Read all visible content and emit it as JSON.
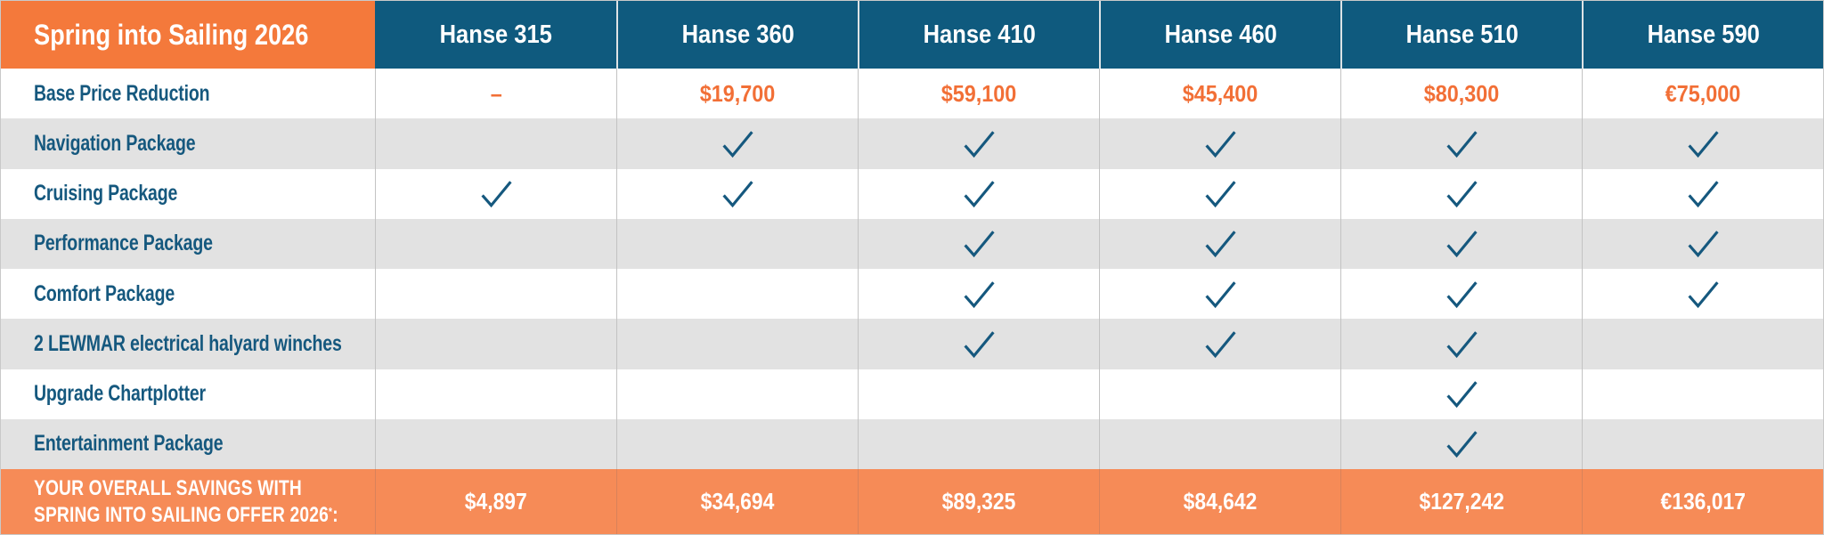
{
  "table": {
    "title": "Spring into Sailing 2026",
    "models": [
      "Hanse 315",
      "Hanse 360",
      "Hanse 410",
      "Hanse 460",
      "Hanse 510",
      "Hanse 590"
    ],
    "rows": [
      {
        "label": "Base Price Reduction",
        "type": "price",
        "values": [
          "–",
          "$19,700",
          "$59,100",
          "$45,400",
          "$80,300",
          "€75,000"
        ]
      },
      {
        "label": "Navigation Package",
        "type": "check",
        "values": [
          false,
          true,
          true,
          true,
          true,
          true
        ]
      },
      {
        "label": "Cruising Package",
        "type": "check",
        "values": [
          true,
          true,
          true,
          true,
          true,
          true
        ]
      },
      {
        "label": "Performance Package",
        "type": "check",
        "values": [
          false,
          false,
          true,
          true,
          true,
          true
        ]
      },
      {
        "label": "Comfort Package",
        "type": "check",
        "values": [
          false,
          false,
          true,
          true,
          true,
          true
        ]
      },
      {
        "label": "2 LEWMAR electrical halyard winches",
        "type": "check",
        "values": [
          false,
          false,
          true,
          true,
          true,
          false
        ]
      },
      {
        "label": "Upgrade Chartplotter",
        "type": "check",
        "values": [
          false,
          false,
          false,
          false,
          true,
          false
        ]
      },
      {
        "label": "Entertainment Package",
        "type": "check",
        "values": [
          false,
          false,
          false,
          false,
          true,
          false
        ]
      }
    ],
    "footer": {
      "label_line1": "YOUR OVERALL SAVINGS WITH",
      "label_line2": "SPRING INTO SAILING OFFER 2026",
      "label_sup": "*",
      "label_colon": ":",
      "values": [
        "$4,897",
        "$34,694",
        "$89,325",
        "$84,642",
        "$127,242",
        "€136,017"
      ]
    },
    "colors": {
      "header_orange": "#F4793B",
      "header_blue": "#0F5A7E",
      "accent_blue": "#15587E",
      "price_orange": "#F26F36",
      "row_gray": "#E2E2E2",
      "footer_orange": "#F68B57",
      "white": "#FFFFFF"
    }
  },
  "chart_data": {
    "type": "table",
    "title": "Spring into Sailing 2026",
    "columns": [
      "Spring into Sailing 2026",
      "Hanse 315",
      "Hanse 360",
      "Hanse 410",
      "Hanse 460",
      "Hanse 510",
      "Hanse 590"
    ],
    "rows": [
      [
        "Base Price Reduction",
        "–",
        "$19,700",
        "$59,100",
        "$45,400",
        "$80,300",
        "€75,000"
      ],
      [
        "Navigation Package",
        "",
        "✓",
        "✓",
        "✓",
        "✓",
        "✓"
      ],
      [
        "Cruising Package",
        "✓",
        "✓",
        "✓",
        "✓",
        "✓",
        "✓"
      ],
      [
        "Performance Package",
        "",
        "",
        "✓",
        "✓",
        "✓",
        "✓"
      ],
      [
        "Comfort Package",
        "",
        "",
        "✓",
        "✓",
        "✓",
        "✓"
      ],
      [
        "2 LEWMAR electrical halyard winches",
        "",
        "",
        "✓",
        "✓",
        "✓",
        ""
      ],
      [
        "Upgrade Chartplotter",
        "",
        "",
        "",
        "",
        "✓",
        ""
      ],
      [
        "Entertainment Package",
        "",
        "",
        "",
        "",
        "✓",
        ""
      ],
      [
        "YOUR OVERALL SAVINGS WITH SPRING INTO SAILING OFFER 2026*:",
        "$4,897",
        "$34,694",
        "$89,325",
        "$84,642",
        "$127,242",
        "€136,017"
      ]
    ]
  }
}
